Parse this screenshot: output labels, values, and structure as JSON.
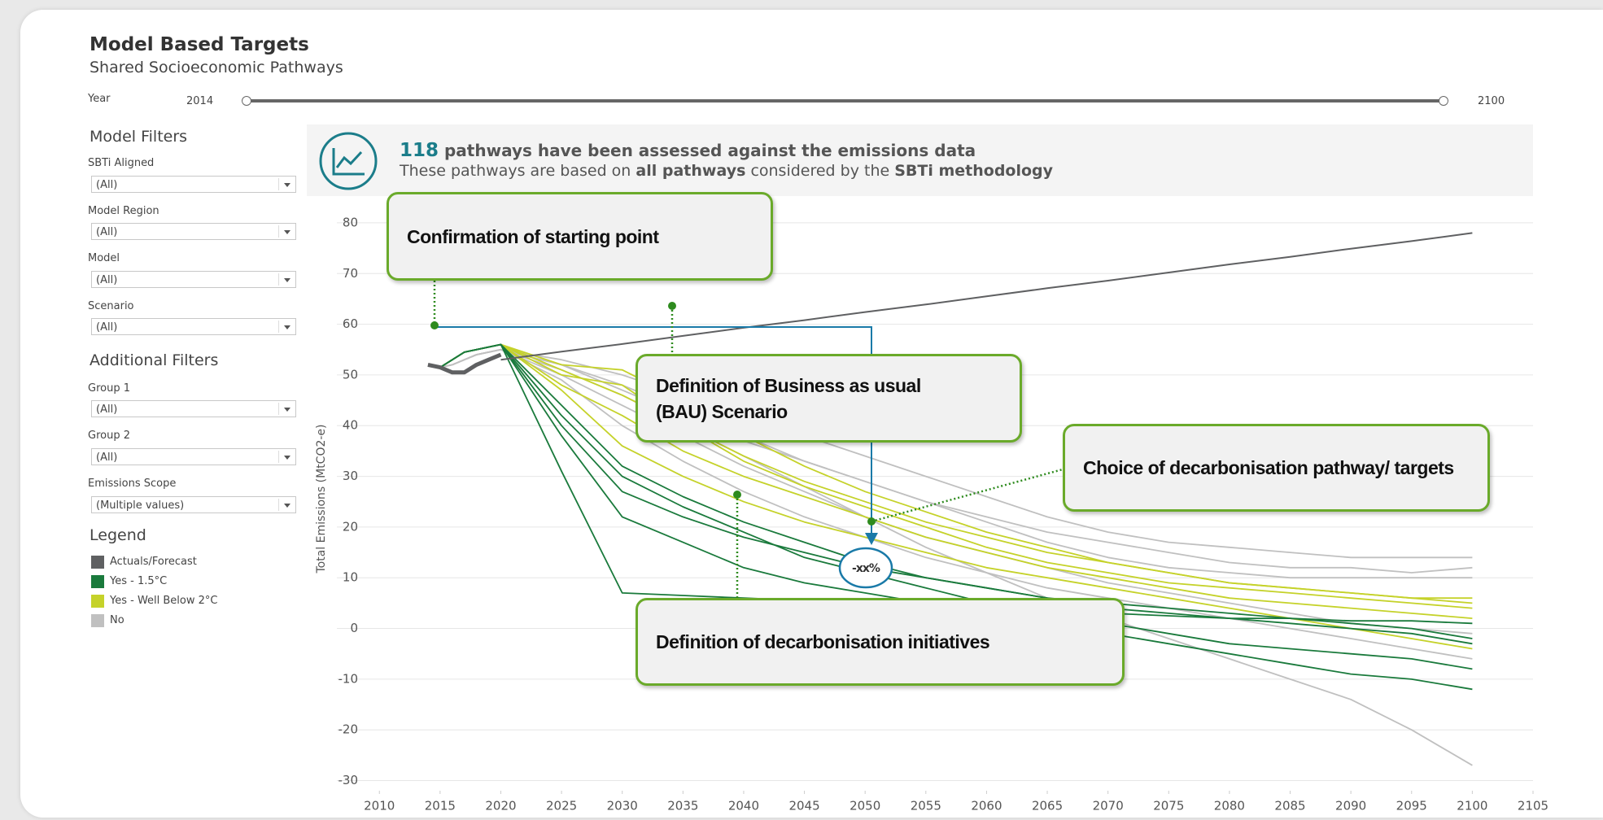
{
  "header": {
    "title": "Model Based Targets",
    "subtitle": "Shared Socioeconomic Pathways"
  },
  "year_filter": {
    "label": "Year",
    "start": 2014,
    "end": 2100
  },
  "model_filters": {
    "title": "Model Filters",
    "items": [
      {
        "label": "SBTi Aligned",
        "value": "(All)"
      },
      {
        "label": "Model Region",
        "value": "(All)"
      },
      {
        "label": "Model",
        "value": "(All)"
      },
      {
        "label": "Scenario",
        "value": "(All)"
      }
    ]
  },
  "additional_filters": {
    "title": "Additional Filters",
    "items": [
      {
        "label": "Group 1",
        "value": "(All)"
      },
      {
        "label": "Group 2",
        "value": "(All)"
      },
      {
        "label": "Emissions Scope",
        "value": "(Multiple values)"
      }
    ]
  },
  "legend_title": "Legend",
  "banner": {
    "count": 118,
    "line1": "pathways have been assessed against the emissions data",
    "line2": [
      "These pathways are based on",
      "all pathways",
      "considered by the",
      "SBTi methodology"
    ]
  },
  "annotations": [
    {
      "text": "Confirmation of starting point"
    },
    {
      "text": "Definition of Business as usual (BAU) Scenario"
    },
    {
      "text": "Choice of decarbonisation pathway/ targets"
    },
    {
      "text": "Definition of decarbonisation initiatives"
    },
    {
      "text": "-xx%"
    }
  ],
  "chart_data": {
    "type": "line",
    "y_label": "Total Emissions (MtCO2-e)",
    "x": [
      2014,
      2015,
      2016,
      2017,
      2018,
      2019,
      2020,
      2025,
      2030,
      2035,
      2040,
      2045,
      2050,
      2055,
      2060,
      2065,
      2070,
      2075,
      2080,
      2085,
      2090,
      2095,
      2100
    ],
    "xlim": [
      2006.5,
      2105
    ],
    "xticks": [
      2010,
      2015,
      2020,
      2025,
      2030,
      2035,
      2040,
      2045,
      2050,
      2055,
      2060,
      2065,
      2070,
      2075,
      2080,
      2085,
      2090,
      2095,
      2100,
      2105
    ],
    "ylim": [
      -32,
      84
    ],
    "yticks": [
      -30,
      -20,
      -10,
      0,
      10,
      20,
      30,
      40,
      50,
      60,
      70,
      80
    ],
    "grid": true,
    "series": [
      {
        "name": "Actuals/Forecast",
        "color": "#5f6062",
        "lines": [
          [
            52,
            51.5,
            50.5,
            50.5,
            52,
            53,
            54,
            null,
            null,
            null,
            null,
            null,
            null,
            null,
            null,
            null,
            null,
            null,
            null,
            null,
            null,
            null,
            null
          ],
          [
            null,
            null,
            null,
            null,
            null,
            null,
            53,
            54.6,
            56.1,
            57.7,
            59.3,
            60.8,
            62.4,
            63.9,
            65.5,
            67.1,
            68.6,
            70.2,
            71.8,
            73.3,
            74.9,
            76.4,
            78
          ]
        ]
      },
      {
        "name": "Yes - 1.5°C",
        "color": "#1a7a3c",
        "lines": [
          [
            null,
            51.5,
            53,
            54.5,
            55,
            55.5,
            56,
            31,
            7,
            6.5,
            6,
            5.5,
            5,
            4.5,
            4,
            3.5,
            3,
            2.5,
            2,
            2,
            1.5,
            1.5,
            1
          ],
          [
            null,
            51.5,
            53,
            54.5,
            55,
            55.5,
            56,
            38,
            22,
            17,
            12,
            9,
            7,
            5,
            3,
            1,
            -1,
            -3,
            -5,
            -7,
            -9,
            -10,
            -12
          ],
          [
            null,
            51.5,
            53,
            54.5,
            55,
            55.5,
            56,
            40,
            27,
            22,
            18,
            15,
            12,
            10,
            8,
            6,
            5,
            4,
            3,
            2,
            1,
            0,
            -2
          ],
          [
            null,
            51.5,
            53,
            54.5,
            55,
            55.5,
            56,
            42,
            30,
            24,
            19,
            14,
            11,
            8,
            5,
            3,
            1,
            -1,
            -3,
            -4,
            -5,
            -6,
            -8
          ],
          [
            null,
            51.5,
            53,
            54.5,
            55,
            55.5,
            56,
            44,
            32,
            26,
            21,
            17,
            13,
            10,
            8,
            6,
            4,
            3,
            2,
            1,
            0,
            -1,
            -3
          ]
        ]
      },
      {
        "name": "Yes - Well Below 2°C",
        "color": "#c5d22a",
        "lines": [
          [
            null,
            51.5,
            53,
            54.5,
            55,
            55.5,
            56,
            50,
            48,
            40,
            33,
            28,
            24,
            20,
            16,
            13,
            11,
            9,
            8,
            7,
            6,
            5,
            4
          ],
          [
            null,
            51.5,
            53,
            54.5,
            55,
            55.5,
            56,
            48,
            42,
            35,
            30,
            26,
            22,
            18,
            15,
            12,
            10,
            8,
            6,
            5,
            4,
            3,
            2
          ],
          [
            null,
            51.5,
            53,
            54.5,
            55,
            55.5,
            56,
            52,
            51,
            45,
            38,
            32,
            27,
            23,
            19,
            16,
            13,
            11,
            9,
            8,
            7,
            6,
            5
          ],
          [
            null,
            51.5,
            53,
            54.5,
            55,
            55.5,
            56,
            47,
            36,
            30,
            25,
            21,
            18,
            15,
            12,
            10,
            8,
            6,
            4,
            2,
            0,
            -2,
            -4
          ],
          [
            null,
            51.5,
            53,
            54.5,
            55,
            55.5,
            56,
            51,
            46,
            40,
            34,
            29,
            25,
            21,
            18,
            15,
            13,
            11,
            9,
            8,
            7,
            6,
            6
          ]
        ]
      },
      {
        "name": "No",
        "color": "#c0c0c0",
        "lines": [
          [
            null,
            51.5,
            52,
            53,
            54,
            54.5,
            55,
            53,
            50,
            46,
            42,
            38,
            34,
            30,
            26,
            22,
            19,
            17,
            16,
            15,
            14,
            14,
            14
          ],
          [
            null,
            51.5,
            52,
            53,
            54,
            54.5,
            55,
            52,
            48,
            43,
            38,
            33,
            29,
            25,
            21,
            17,
            14,
            12,
            11,
            10,
            10,
            10,
            10
          ],
          [
            null,
            51.5,
            52,
            53,
            54,
            54.5,
            55,
            50,
            44,
            38,
            32,
            27,
            22,
            18,
            15,
            12,
            9,
            7,
            5,
            3,
            1,
            0,
            -1
          ],
          [
            null,
            51.5,
            52,
            53,
            54,
            54.5,
            55,
            51,
            46,
            40,
            34,
            28,
            22,
            16,
            11,
            6,
            2,
            -2,
            -6,
            -10,
            -14,
            -20,
            -27
          ],
          [
            null,
            51.5,
            52,
            53,
            54,
            54.5,
            55,
            49,
            40,
            33,
            27,
            22,
            18,
            14,
            11,
            8,
            6,
            4,
            2,
            0,
            -2,
            -4,
            -6
          ],
          [
            null,
            51.5,
            52,
            53,
            54,
            54.5,
            55,
            52,
            47,
            42,
            37,
            33,
            29,
            25,
            22,
            19,
            17,
            15,
            13,
            12,
            12,
            11,
            12
          ]
        ]
      }
    ]
  }
}
